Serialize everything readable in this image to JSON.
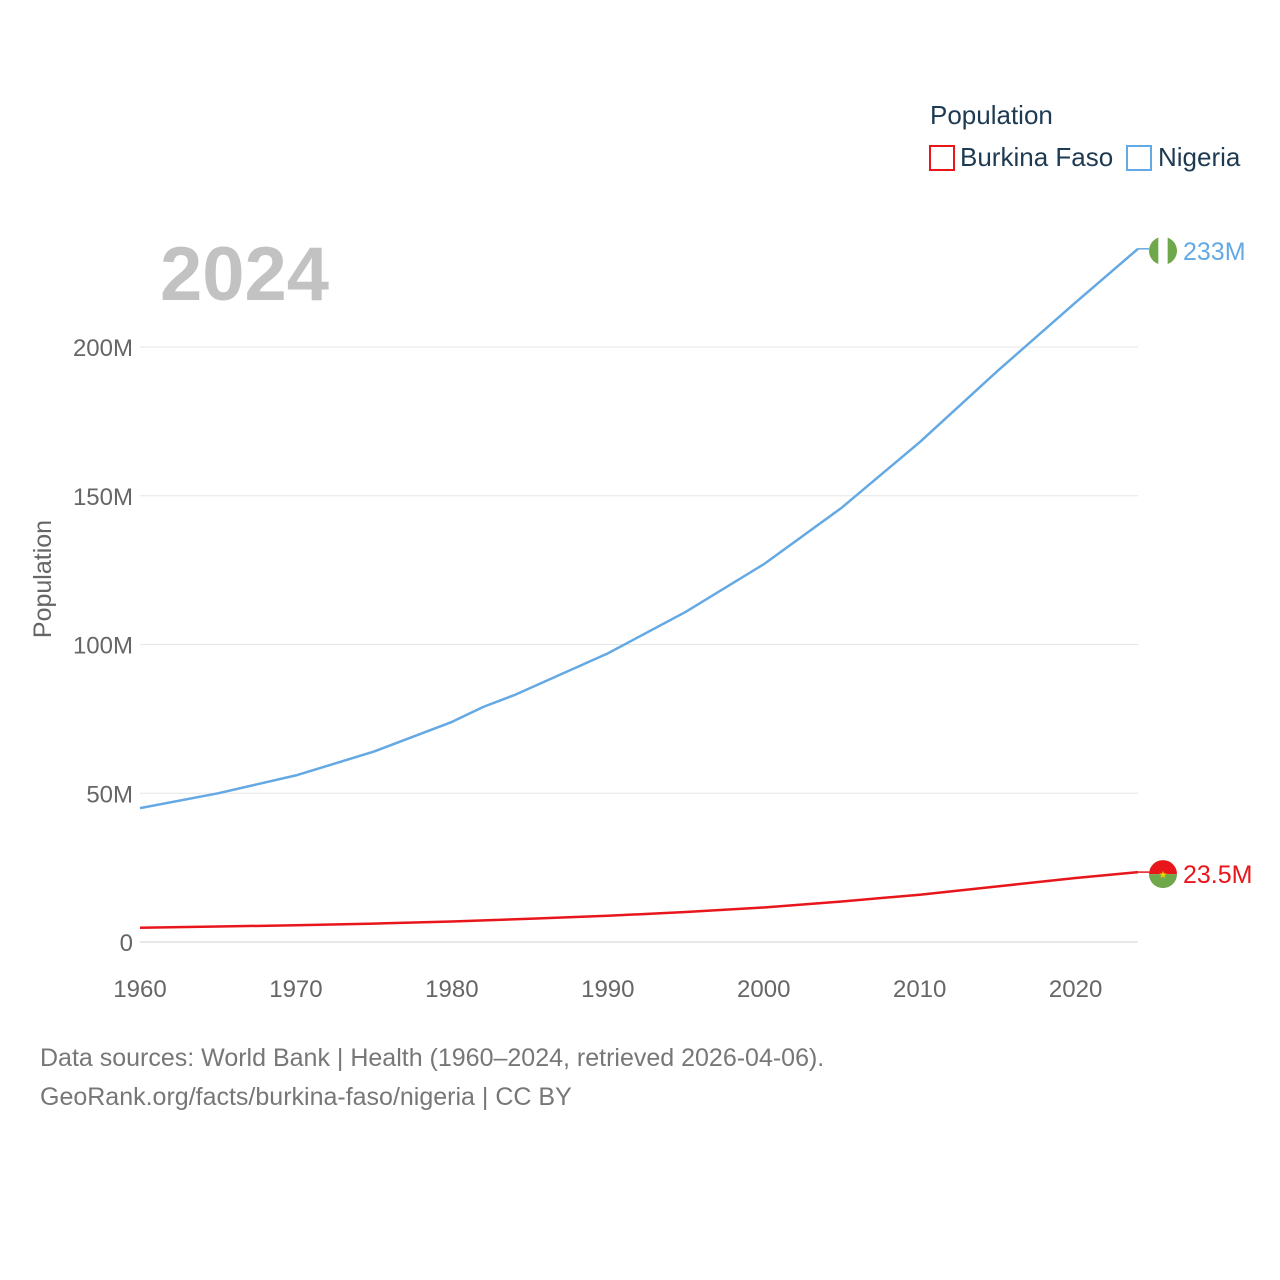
{
  "chart_data": {
    "type": "line",
    "title": "Population",
    "year_label": "2024",
    "ylabel": "Population",
    "xlabel": "",
    "xlim": [
      1960,
      2024
    ],
    "ylim": [
      0,
      233000000
    ],
    "x_ticks": [
      "1960",
      "1970",
      "1980",
      "1990",
      "2000",
      "2010",
      "2020"
    ],
    "x_tick_values": [
      1960,
      1970,
      1980,
      1990,
      2000,
      2010,
      2020
    ],
    "y_ticks": [
      "0",
      "50M",
      "100M",
      "150M",
      "200M"
    ],
    "y_tick_values": [
      0,
      50000000,
      100000000,
      150000000,
      200000000
    ],
    "legend": {
      "title": "Population",
      "entries": [
        "Burkina Faso",
        "Nigeria"
      ]
    },
    "series": [
      {
        "name": "Burkina Faso",
        "color": "#e8161b",
        "end_label": "23.5M",
        "x": [
          1960,
          1965,
          1970,
          1975,
          1980,
          1985,
          1990,
          1995,
          2000,
          2005,
          2010,
          2015,
          2020,
          2024
        ],
        "values": [
          4800000,
          5200000,
          5600000,
          6200000,
          6900000,
          7800000,
          8800000,
          10100000,
          11600000,
          13600000,
          15900000,
          18700000,
          21500000,
          23500000
        ]
      },
      {
        "name": "Nigeria",
        "color": "#64a9e3",
        "end_label": "233M",
        "x": [
          1960,
          1965,
          1970,
          1975,
          1980,
          1982,
          1984,
          1990,
          1995,
          2000,
          2005,
          2010,
          2015,
          2020,
          2024
        ],
        "values": [
          45000000,
          50000000,
          56000000,
          64000000,
          74000000,
          79000000,
          83000000,
          97000000,
          111000000,
          127000000,
          146000000,
          168000000,
          192000000,
          215000000,
          233000000
        ]
      }
    ]
  },
  "source": {
    "line1": "Data sources: World Bank | Health (1960–2024, retrieved 2026-04-06).",
    "line2": "GeoRank.org/facts/burkina-faso/nigeria | CC BY"
  }
}
